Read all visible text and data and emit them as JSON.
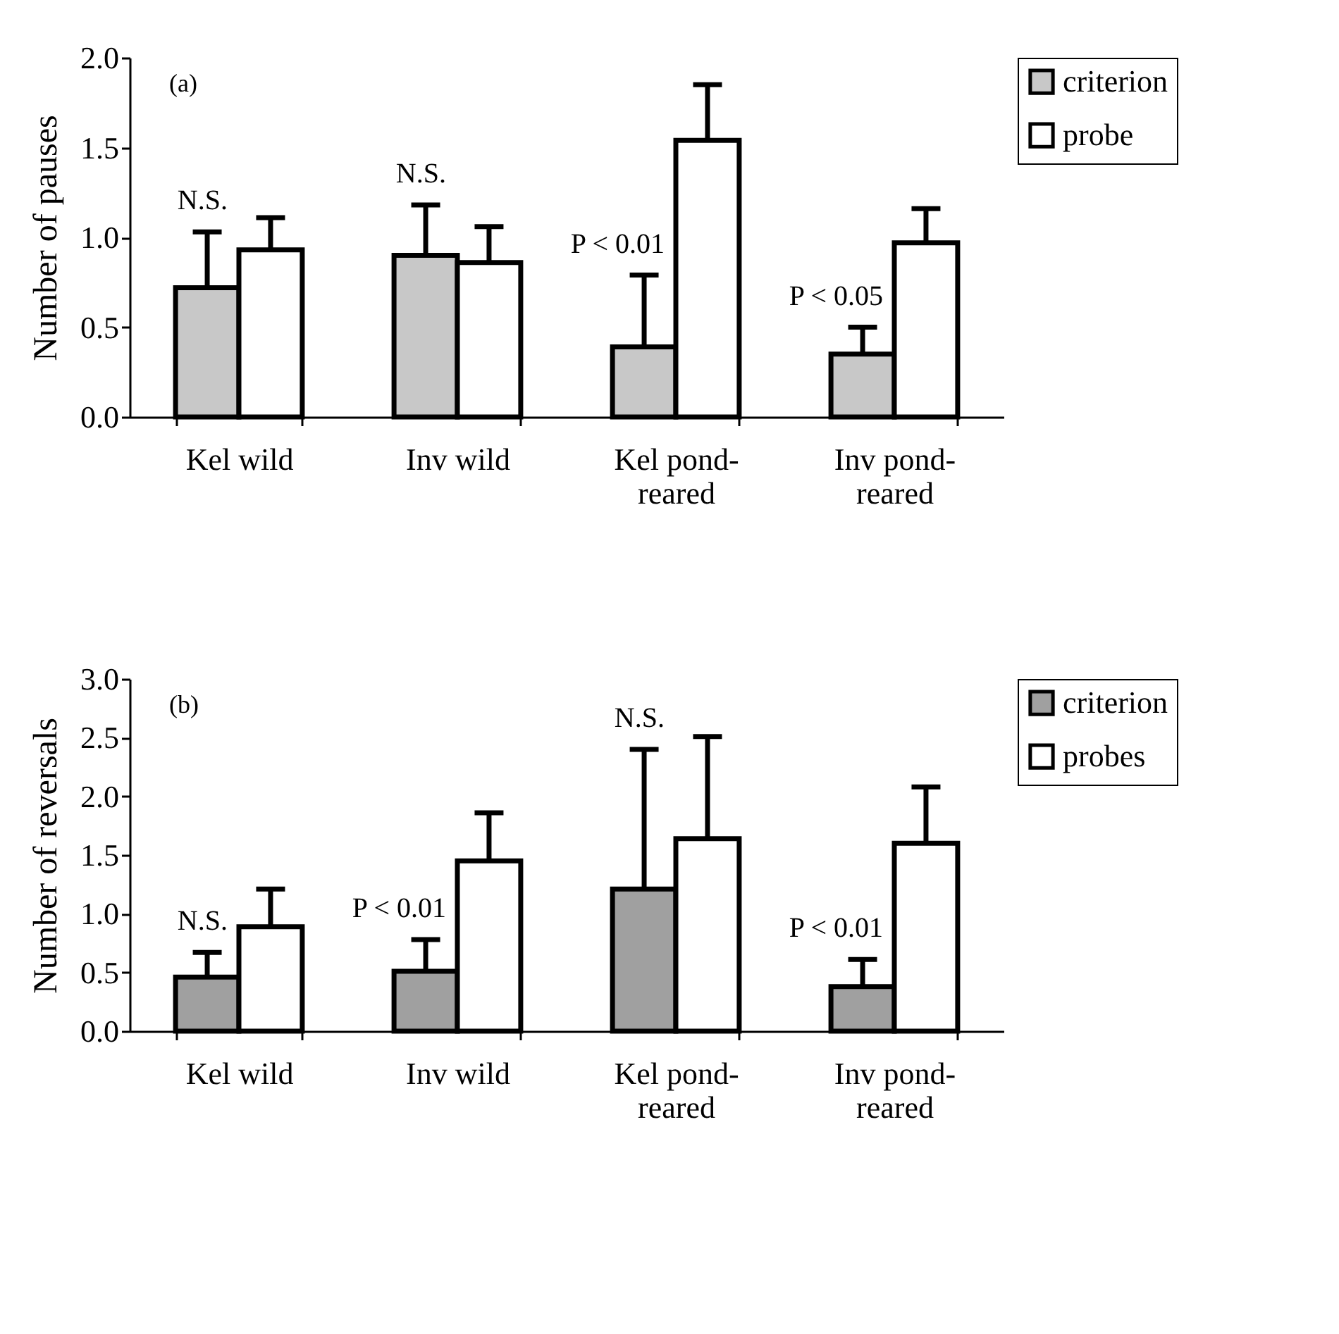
{
  "chart_data": [
    {
      "type": "bar",
      "ylabel": "Number of pauses",
      "categories": [
        "Kel wild",
        "Inv wild",
        "Kel pond-reared",
        "Inv pond-reared"
      ],
      "series": [
        {
          "name": "criterion",
          "color": "#c8c8c8",
          "values": [
            0.72,
            0.9,
            0.39,
            0.35
          ],
          "errors": [
            [
              0.72,
              1.03
            ],
            [
              0.9,
              1.18
            ],
            [
              0.39,
              0.79
            ],
            [
              0.35,
              0.5
            ]
          ]
        },
        {
          "name": "probe",
          "color": "#ffffff",
          "values": [
            0.93,
            0.86,
            1.54,
            0.97
          ],
          "errors": [
            [
              0.93,
              1.11
            ],
            [
              0.86,
              1.06
            ],
            [
              1.54,
              1.85
            ],
            [
              0.97,
              1.16
            ]
          ]
        }
      ],
      "ylim": [
        0,
        2
      ],
      "yticks": [
        {
          "value": 0,
          "label": "0.0"
        },
        {
          "value": 0.5,
          "label": "0.5"
        },
        {
          "value": 1,
          "label": "1.0"
        },
        {
          "value": 1.5,
          "label": "1.5"
        },
        {
          "value": 2,
          "label": "2.0"
        }
      ],
      "legend": "top right",
      "annotations": [
        "(a)",
        "N.S.",
        "N.S.",
        "P < 0.01",
        "P < 0.05"
      ]
    },
    {
      "type": "bar",
      "ylabel": "Number of reversals",
      "categories": [
        "Kel wild",
        "Inv wild",
        "Kel pond-reared",
        "Inv pond-reared"
      ],
      "series": [
        {
          "name": "criterion",
          "color": "#a0a0a0",
          "values": [
            0.46,
            0.51,
            1.21,
            0.38
          ],
          "errors": [
            [
              0.46,
              0.67
            ],
            [
              0.51,
              0.78
            ],
            [
              1.21,
              2.4
            ],
            [
              0.38,
              0.61
            ]
          ]
        },
        {
          "name": "probes",
          "color": "#ffffff",
          "values": [
            0.89,
            1.45,
            1.64,
            1.6
          ],
          "errors": [
            [
              0.89,
              1.21
            ],
            [
              1.45,
              1.86
            ],
            [
              1.64,
              2.51
            ],
            [
              1.6,
              2.08
            ]
          ]
        }
      ],
      "ylim": [
        0,
        3
      ],
      "yticks": [
        {
          "value": 0,
          "label": "0.0"
        },
        {
          "value": 0.5,
          "label": "0.5"
        },
        {
          "value": 1,
          "label": "1.0"
        },
        {
          "value": 1.5,
          "label": "1.5"
        },
        {
          "value": 2,
          "label": "2.0"
        },
        {
          "value": 2.5,
          "label": "2.5"
        },
        {
          "value": 3,
          "label": "3.0"
        }
      ],
      "legend": "top right",
      "annotations": [
        "(b)",
        "N.S.",
        "P < 0.01",
        "N.S.",
        "P < 0.01"
      ]
    }
  ]
}
